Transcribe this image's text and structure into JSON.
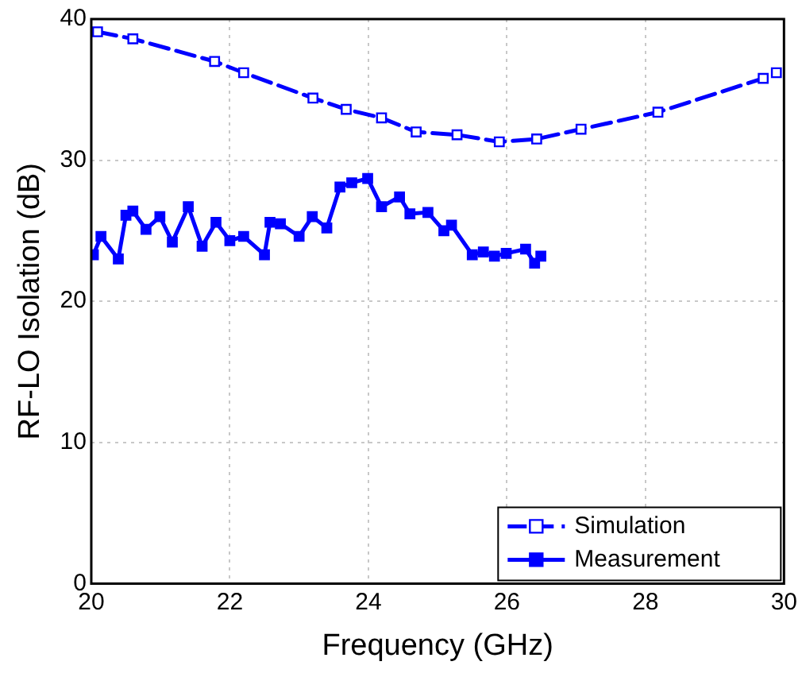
{
  "chart_data": {
    "type": "line",
    "xlabel": "Frequency (GHz)",
    "ylabel": "RF-LO Isolation (dB)",
    "xlim": [
      20,
      30
    ],
    "xticks": [
      20,
      22,
      24,
      26,
      28,
      30
    ],
    "ylim": [
      0,
      40
    ],
    "yticks": [
      0,
      10,
      20,
      30,
      40
    ],
    "grid": true,
    "legend": "bottom right",
    "series": [
      {
        "name": "Simulation",
        "color": "#0000ff",
        "marker": "square",
        "line_style": "dashed",
        "x": [
          20.09,
          20.6,
          21.78,
          22.2,
          23.2,
          23.68,
          24.19,
          24.69,
          25.28,
          25.89,
          26.43,
          27.07,
          28.18,
          29.7,
          29.89
        ],
        "values": [
          39.1,
          38.6,
          37.0,
          36.2,
          34.4,
          33.6,
          33.0,
          32.0,
          31.8,
          31.3,
          31.5,
          32.2,
          33.4,
          35.8,
          36.2
        ]
      },
      {
        "name": "Measurement",
        "color": "#0000ff",
        "marker": "square",
        "line_style": "solid",
        "x": [
          20.03,
          20.14,
          20.39,
          20.5,
          20.6,
          20.79,
          20.99,
          21.17,
          21.4,
          21.6,
          21.8,
          22.0,
          22.2,
          22.5,
          22.58,
          22.73,
          23.0,
          23.19,
          23.4,
          23.59,
          23.76,
          23.99,
          24.19,
          24.45,
          24.6,
          24.86,
          25.09,
          25.2,
          25.5,
          25.66,
          25.82,
          25.99,
          26.27,
          26.4,
          26.49
        ],
        "values": [
          23.3,
          24.6,
          23.0,
          26.1,
          26.4,
          25.1,
          26.0,
          24.2,
          26.7,
          23.9,
          25.6,
          24.3,
          24.6,
          23.3,
          25.6,
          25.5,
          24.6,
          26.0,
          25.2,
          28.1,
          28.4,
          28.7,
          26.7,
          27.4,
          26.2,
          26.3,
          25.0,
          25.4,
          23.3,
          23.5,
          23.2,
          23.4,
          23.7,
          22.7,
          23.2
        ]
      }
    ]
  }
}
